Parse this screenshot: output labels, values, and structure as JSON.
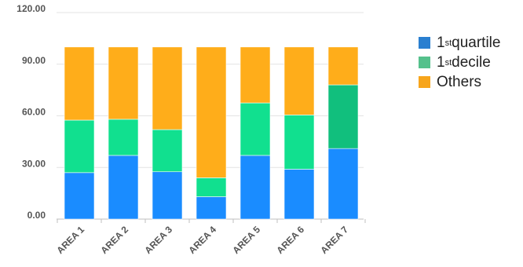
{
  "chart_data": {
    "type": "bar",
    "stacked": true,
    "categories": [
      "AREA 1",
      "AREA 2",
      "AREA 3",
      "AREA 4",
      "AREA 5",
      "AREA 6",
      "AREA 7"
    ],
    "series": [
      {
        "name": "1st quartile",
        "color": "#1a8cff",
        "values": [
          27,
          37,
          27.5,
          13,
          37,
          29,
          41
        ]
      },
      {
        "name": "1st decile",
        "color": "#11e08f",
        "values": [
          30.5,
          21,
          24.5,
          11,
          30.5,
          31.5,
          37
        ]
      },
      {
        "name": "Others",
        "color": "#ffad1a",
        "values": [
          42.5,
          42,
          48,
          76,
          32.5,
          39.5,
          22
        ]
      }
    ],
    "bar_color_overrides": [
      {
        "category": "AREA 7",
        "series": "1st decile",
        "color": "#11bf7d"
      }
    ],
    "yticks": [
      "0.00",
      "30.00",
      "60.00",
      "90.00",
      "120.00"
    ],
    "ylim": [
      0,
      120
    ],
    "grid": true,
    "legend_position": "right"
  },
  "legend": {
    "items": [
      {
        "base": "1",
        "sup": "st",
        "rest": "quartile",
        "color": "#2a7fd0"
      },
      {
        "base": "1",
        "sup": "st",
        "rest": "decile",
        "color": "#55c18c"
      },
      {
        "base": "Others",
        "sup": "",
        "rest": "",
        "color": "#f7a51c"
      }
    ]
  }
}
